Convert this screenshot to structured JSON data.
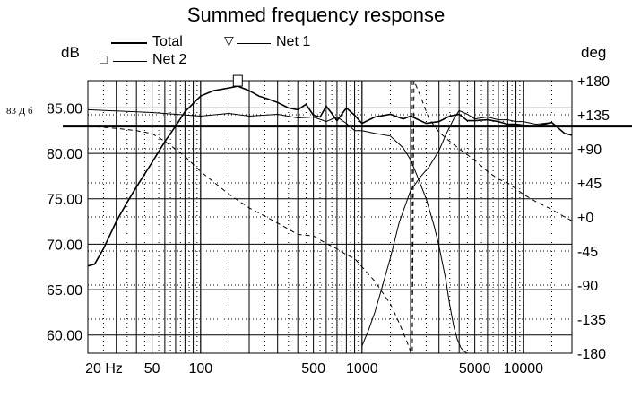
{
  "chart_data": {
    "type": "line",
    "title": "Summed frequency response",
    "y_left_unit": "dB",
    "y_right_unit": "deg",
    "x_scale": "log",
    "xlim": [
      20,
      20000
    ],
    "ylim_left": [
      58,
      88
    ],
    "ylim_right": [
      -180,
      180
    ],
    "grid": true,
    "x_tick_labels": [
      {
        "value": 20,
        "label": "20 Hz"
      },
      {
        "value": 50,
        "label": "50"
      },
      {
        "value": 100,
        "label": "100"
      },
      {
        "value": 500,
        "label": "500"
      },
      {
        "value": 1000,
        "label": "1000"
      },
      {
        "value": 5000,
        "label": "5000"
      },
      {
        "value": 10000,
        "label": "10000"
      }
    ],
    "y_left_ticks": [
      "60.00",
      "65.00",
      "70.00",
      "75.00",
      "80.00",
      "85.00"
    ],
    "y_left_tick_values": [
      60,
      65,
      70,
      75,
      80,
      85
    ],
    "y_right_ticks": [
      "-180",
      "-135",
      "-90",
      "-45",
      "+0",
      "+45",
      "+90",
      "+135",
      "+180"
    ],
    "y_right_tick_values": [
      -180,
      -135,
      -90,
      -45,
      0,
      45,
      90,
      135,
      180
    ],
    "reference_line": {
      "label": "83 Д б",
      "value": 83
    },
    "legend": [
      {
        "name": "Total",
        "marker": "none",
        "style": "solid-thick"
      },
      {
        "name": "Net 1",
        "marker": "▽",
        "style": "solid"
      },
      {
        "name": "Net 2",
        "marker": "□",
        "style": "solid"
      }
    ],
    "series": [
      {
        "name": "Total",
        "axis": "left",
        "x": [
          20,
          22,
          25,
          30,
          35,
          40,
          50,
          60,
          70,
          80,
          100,
          120,
          150,
          170,
          200,
          230,
          260,
          300,
          350,
          400,
          450,
          500,
          550,
          600,
          650,
          700,
          800,
          900,
          1000,
          1200,
          1500,
          1800,
          2000,
          2500,
          3000,
          3500,
          4000,
          4500,
          5000,
          6000,
          7000,
          8000,
          9000,
          10000,
          12000,
          15000,
          18000,
          20000
        ],
        "y": [
          67.6,
          67.8,
          69.5,
          72.5,
          74.6,
          76.3,
          79.0,
          81.3,
          83.0,
          84.6,
          86.3,
          86.9,
          87.2,
          87.4,
          86.9,
          86.3,
          86.0,
          85.6,
          85.0,
          84.8,
          85.4,
          84.2,
          84.0,
          85.2,
          84.4,
          83.6,
          85.0,
          84.2,
          83.3,
          84.0,
          84.3,
          83.8,
          84.1,
          83.3,
          83.5,
          84.1,
          84.3,
          83.6,
          83.6,
          83.7,
          83.5,
          83.2,
          83.2,
          83.1,
          83.0,
          83.4,
          82.2,
          82.0
        ]
      },
      {
        "name": "Net 1",
        "axis": "left",
        "x": [
          1000,
          1100,
          1200,
          1300,
          1500,
          1700,
          2000,
          2300,
          2600,
          3000,
          3300,
          3700,
          4000,
          4500,
          5000,
          6000,
          7000,
          8000,
          9000,
          10000,
          12000,
          15000
        ],
        "y": [
          58.8,
          60.6,
          62.5,
          64.6,
          68.5,
          72.4,
          75.9,
          77.4,
          78.5,
          80.3,
          82.0,
          83.8,
          84.7,
          84.3,
          83.8,
          84.0,
          83.7,
          83.7,
          83.5,
          83.5,
          83.2,
          83.4
        ]
      },
      {
        "name": "Net 2",
        "axis": "left",
        "x": [
          20,
          50,
          100,
          150,
          200,
          300,
          400,
          500,
          600,
          700,
          800,
          900,
          1000,
          1200,
          1500,
          1800,
          2000,
          2200,
          2500,
          2800,
          3000,
          3300,
          3500,
          3700,
          3900,
          4100,
          4300,
          4500
        ],
        "y": [
          84.8,
          84.5,
          84.1,
          84.4,
          84.1,
          84.3,
          83.9,
          84.0,
          83.5,
          84.0,
          83.3,
          82.5,
          82.5,
          82.2,
          81.9,
          80.6,
          79.3,
          77.5,
          75.0,
          72.0,
          69.8,
          66.2,
          63.3,
          61.0,
          59.5,
          58.6,
          58.2,
          58.0
        ]
      },
      {
        "name": "Total phase",
        "axis": "right",
        "style": "dashed",
        "x": [
          20,
          30,
          40,
          50,
          60,
          80,
          100,
          150,
          200,
          300,
          400,
          500,
          600,
          700,
          800,
          900,
          1000,
          1200,
          1500,
          1700,
          1900,
          2000,
          2050,
          2100,
          2300,
          2600,
          3000,
          3500,
          4000,
          5000,
          6000,
          7000,
          8000,
          10000,
          12000,
          15000,
          18000,
          20000
        ],
        "y": [
          120,
          117,
          114,
          110,
          100,
          80,
          60,
          30,
          12,
          -8,
          -23,
          -25,
          -35,
          -42,
          -50,
          -55,
          -66,
          -85,
          -115,
          -140,
          -165,
          -178,
          -180,
          180,
          160,
          130,
          112,
          100,
          90,
          75,
          60,
          50,
          45,
          30,
          20,
          10,
          0,
          -5
        ]
      }
    ]
  }
}
